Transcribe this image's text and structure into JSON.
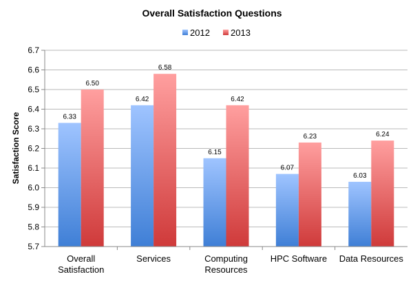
{
  "chart_data": {
    "type": "bar",
    "title": "Overall Satisfaction Questions",
    "ylabel": "Satisfaction Score",
    "xlabel": "",
    "categories": [
      [
        "Overall",
        "Satisfaction"
      ],
      [
        "Services"
      ],
      [
        "Computing",
        "Resources"
      ],
      [
        "HPC Software"
      ],
      [
        "Data Resources"
      ]
    ],
    "series": [
      {
        "name": "2012",
        "values": [
          6.33,
          6.42,
          6.15,
          6.07,
          6.03
        ],
        "labels": [
          "6.33",
          "6.42",
          "6.15",
          "6.07",
          "6.03"
        ],
        "color_top": "#9fc4ff",
        "color_bottom": "#3f7fd6"
      },
      {
        "name": "2013",
        "values": [
          6.5,
          6.58,
          6.42,
          6.23,
          6.24
        ],
        "labels": [
          "6.50",
          "6.58",
          "6.42",
          "6.23",
          "6.24"
        ],
        "color_top": "#ff9f9f",
        "color_bottom": "#cf3a3a"
      }
    ],
    "ylim": [
      5.7,
      6.7
    ],
    "yticks": [
      "5.7",
      "5.8",
      "5.9",
      "6.0",
      "6.1",
      "6.2",
      "6.3",
      "6.4",
      "6.5",
      "6.6",
      "6.7"
    ],
    "grid": true,
    "legend_position": "top-center"
  }
}
